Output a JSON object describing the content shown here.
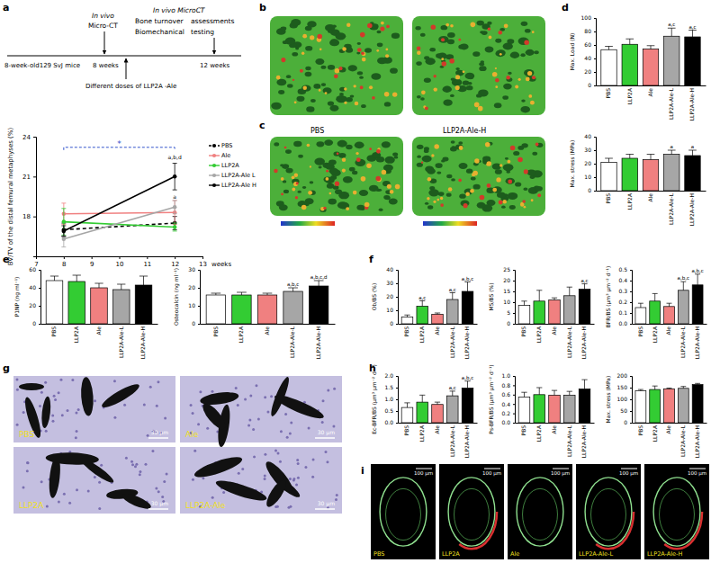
{
  "panel_letters": [
    "a",
    "b",
    "c",
    "d",
    "e",
    "f",
    "g",
    "h",
    "i"
  ],
  "timeline": {
    "left": "8-week-old129 SvJ mice",
    "start": "8 weeks",
    "end": "12 weeks",
    "first_scan": [
      "In vivo",
      "Micro-CT"
    ],
    "treatment": "Different doses of LLP2A -Ale",
    "final": [
      "In vivo MicroCT",
      "Bone turnover",
      "assessments",
      "Biomechanical",
      "testing"
    ]
  },
  "images": {
    "c_labels": [
      "PBS",
      "LLP2A-Ale-H"
    ],
    "g_labels": [
      "PBS",
      "Ale",
      "LLP2A",
      "LLP2A-Ale"
    ],
    "g_scale": "30 μm",
    "i_labels": [
      "PBS",
      "LLP2A",
      "Ale",
      "LLP2A-Ale-L",
      "LLP2A-Ale-H"
    ],
    "i_scale": "100 μm"
  },
  "chart_data": [
    {
      "type": "line",
      "y_label": "BV/TV of the distal femural metaphyses (%)",
      "x_label": "weeks",
      "x": [
        8,
        12
      ],
      "xlim": [
        7,
        13
      ],
      "xticks": [
        7,
        8,
        9,
        10,
        11,
        12,
        13
      ],
      "ylim": [
        15,
        24
      ],
      "yticks": [
        18,
        21,
        24
      ],
      "legend": "right",
      "series": [
        {
          "name": "PBS",
          "color": "#000000",
          "line_style": "dashed",
          "marker": "circle",
          "values": [
            17.0,
            17.5
          ],
          "errors": [
            0.5,
            0.5
          ]
        },
        {
          "name": "Ale",
          "color": "#f08080",
          "line_style": "solid",
          "marker": "circle",
          "values": [
            18.2,
            18.3
          ],
          "errors": [
            0.8,
            0.9
          ]
        },
        {
          "name": "LLP2A",
          "color": "#33cc33",
          "line_style": "solid",
          "marker": "circle",
          "values": [
            17.6,
            17.2
          ],
          "errors": [
            1.0,
            0.3
          ]
        },
        {
          "name": "LLP2A-Ale L",
          "color": "#a6a6a6",
          "line_style": "solid",
          "marker": "circle",
          "values": [
            16.3,
            18.7
          ],
          "errors": [
            0.6,
            0.5
          ]
        },
        {
          "name": "LLP2A-Ale H",
          "color": "#000000",
          "line_style": "solid",
          "marker": "circle",
          "values": [
            16.9,
            21.0
          ],
          "errors": [
            0.4,
            1.0
          ]
        }
      ],
      "annotations": [
        {
          "text": "a,b,d",
          "x": 12,
          "y": 22.3
        },
        {
          "text": "a",
          "x": 12,
          "y": 19.3
        }
      ],
      "bracket": {
        "x": [
          8,
          12
        ],
        "y": 23.2,
        "text": "*",
        "color": "#3355cc"
      }
    },
    {
      "type": "bar",
      "y_label": "Max. Load (N)",
      "categories": [
        "PBS",
        "LLP2A",
        "Ale",
        "LLP2A-Ale-L",
        "LLP2A-Ale-H"
      ],
      "values": [
        53,
        61,
        54,
        73,
        72
      ],
      "errors": [
        5,
        8,
        5,
        12,
        10
      ],
      "colors": [
        "#ffffff",
        "#33cc33",
        "#f08080",
        "#a6a6a6",
        "#000000"
      ],
      "ylim": [
        0,
        100
      ],
      "yticks": [
        0,
        20,
        40,
        60,
        80,
        100
      ],
      "letters": [
        null,
        null,
        null,
        "a,c",
        "a,c"
      ]
    },
    {
      "type": "bar",
      "y_label": "Max. stress (MPa)",
      "categories": [
        "PBS",
        "LLP2A",
        "Ale",
        "LLP2A-Ale-L",
        "LLP2A-Ale-H"
      ],
      "values": [
        21,
        24,
        23,
        27,
        26
      ],
      "errors": [
        3,
        3,
        4,
        3,
        4
      ],
      "colors": [
        "#ffffff",
        "#33cc33",
        "#f08080",
        "#a6a6a6",
        "#000000"
      ],
      "ylim": [
        0,
        40
      ],
      "yticks": [
        0,
        10,
        20,
        30,
        40
      ],
      "letters": [
        null,
        null,
        null,
        "a",
        "a"
      ]
    },
    {
      "type": "bar",
      "y_label": "P1NP (ng ml⁻¹)",
      "categories": [
        "PBS",
        "LLP2A",
        "Ale",
        "LLP2A-Ale-L",
        "LLP2A-Ale-H"
      ],
      "values": [
        48,
        47,
        40,
        38,
        43
      ],
      "errors": [
        5,
        7,
        5,
        6,
        10
      ],
      "colors": [
        "#ffffff",
        "#33cc33",
        "#f08080",
        "#a6a6a6",
        "#000000"
      ],
      "ylim": [
        0,
        60
      ],
      "yticks": [
        0,
        20,
        40,
        60
      ],
      "letters": [
        null,
        null,
        null,
        null,
        null
      ]
    },
    {
      "type": "bar",
      "y_label": "Osteocalcin (ng ml⁻¹)",
      "categories": [
        "PBS",
        "LLP2A",
        "Ale",
        "LLP2A-Ale-L",
        "LLP2A-Ale-H"
      ],
      "values": [
        16,
        16,
        16,
        18,
        21
      ],
      "errors": [
        1,
        1.5,
        1,
        2,
        3
      ],
      "colors": [
        "#ffffff",
        "#33cc33",
        "#f08080",
        "#a6a6a6",
        "#000000"
      ],
      "ylim": [
        0,
        30
      ],
      "yticks": [
        0,
        10,
        20,
        30
      ],
      "letters": [
        null,
        null,
        null,
        "a,b,c",
        "a,b,c,d"
      ]
    },
    {
      "type": "bar",
      "y_label": "Ob/BS (%)",
      "categories": [
        "PBS",
        "LLP2A",
        "Ale",
        "LLP2A-Ale-L",
        "LLP2A-Ale-H"
      ],
      "values": [
        5,
        13,
        7,
        18,
        24
      ],
      "errors": [
        1.5,
        4,
        1,
        5,
        7
      ],
      "colors": [
        "#ffffff",
        "#33cc33",
        "#f08080",
        "#a6a6a6",
        "#000000"
      ],
      "ylim": [
        0,
        40
      ],
      "yticks": [
        0,
        10,
        20,
        30,
        40
      ],
      "letters": [
        null,
        "a,c",
        null,
        "a,c",
        "a,b,c"
      ]
    },
    {
      "type": "bar",
      "y_label": "MS/BS (%)",
      "categories": [
        "PBS",
        "LLP2A",
        "Ale",
        "LLP2A-Ale-L",
        "LLP2A-Ale-H"
      ],
      "values": [
        8.5,
        10.5,
        11,
        13,
        16
      ],
      "errors": [
        2,
        5,
        1,
        4,
        2.5
      ],
      "colors": [
        "#ffffff",
        "#33cc33",
        "#f08080",
        "#a6a6a6",
        "#000000"
      ],
      "ylim": [
        0,
        25
      ],
      "yticks": [
        0,
        5,
        10,
        15,
        20,
        25
      ],
      "letters": [
        null,
        null,
        null,
        null,
        "a,c"
      ]
    },
    {
      "type": "bar",
      "y_label": "BFR/BS (μm³ μm⁻² d⁻¹)",
      "categories": [
        "PBS",
        "LLP2A",
        "Ale",
        "LLP2A-Ale-L",
        "LLP2A-Ale-H"
      ],
      "values": [
        0.15,
        0.21,
        0.16,
        0.31,
        0.36
      ],
      "errors": [
        0.04,
        0.07,
        0.03,
        0.08,
        0.1
      ],
      "colors": [
        "#ffffff",
        "#33cc33",
        "#f08080",
        "#a6a6a6",
        "#000000"
      ],
      "ylim": [
        0,
        0.5
      ],
      "yticks": [
        {
          "value": 0,
          "label": "0.0"
        },
        0.1,
        0.2,
        0.3,
        0.4,
        0.5
      ],
      "letters": [
        null,
        null,
        null,
        "a,b,c",
        "a,b,c"
      ]
    },
    {
      "type": "bar",
      "y_label": "Ec-BFR/BS (μm³ μm⁻² d⁻¹)",
      "categories": [
        "PBS",
        "LLP2A",
        "Ale",
        "LLP2A-Ale-L",
        "LLP2A-Ale-H"
      ],
      "values": [
        0.65,
        0.88,
        0.78,
        1.15,
        1.48
      ],
      "errors": [
        0.2,
        0.3,
        0.1,
        0.2,
        0.3
      ],
      "colors": [
        "#ffffff",
        "#33cc33",
        "#f08080",
        "#a6a6a6",
        "#000000"
      ],
      "ylim": [
        0,
        2
      ],
      "yticks": [
        {
          "value": 0,
          "label": "0.0"
        },
        0.5,
        {
          "value": 1,
          "label": "1.0"
        },
        1.5,
        {
          "value": 2,
          "label": "2.0"
        }
      ],
      "letters": [
        null,
        null,
        null,
        "a,c",
        "a,b,c"
      ]
    },
    {
      "type": "bar",
      "y_label": "Ps-BFR/BS (μm³ μm⁻² d⁻¹)",
      "categories": [
        "PBS",
        "LLP2A",
        "Ale",
        "LLP2A-Ale-L",
        "LLP2A-Ale-H"
      ],
      "values": [
        0.55,
        0.6,
        0.59,
        0.59,
        0.72
      ],
      "errors": [
        0.1,
        0.15,
        0.1,
        0.08,
        0.2
      ],
      "colors": [
        "#ffffff",
        "#33cc33",
        "#f08080",
        "#a6a6a6",
        "#000000"
      ],
      "ylim": [
        0,
        1
      ],
      "yticks": [
        {
          "value": 0,
          "label": "0.0"
        },
        0.2,
        0.4,
        0.6,
        0.8,
        {
          "value": 1,
          "label": "1.0"
        }
      ],
      "letters": [
        null,
        null,
        null,
        null,
        null
      ]
    },
    {
      "type": "bar",
      "y_label": "Max. stress (MPa)",
      "categories": [
        "PBS",
        "LLP2A",
        "Ale",
        "LLP2A-Ale-L",
        "LLP2A-Ale-H"
      ],
      "values": [
        137,
        142,
        145,
        147,
        163
      ],
      "errors": [
        5,
        15,
        3,
        8,
        5
      ],
      "colors": [
        "#ffffff",
        "#33cc33",
        "#f08080",
        "#a6a6a6",
        "#000000"
      ],
      "ylim": [
        0,
        200
      ],
      "yticks": [
        0,
        50,
        100,
        150,
        200
      ],
      "letters": [
        null,
        null,
        null,
        null,
        null
      ]
    }
  ]
}
